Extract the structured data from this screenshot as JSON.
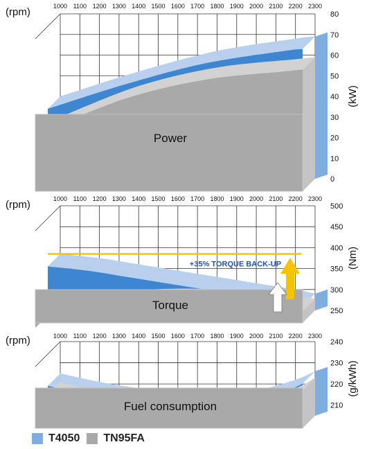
{
  "colors": {
    "t4050_dark": "#3f86d1",
    "t4050_light": "#b9cfee",
    "gray_face": "#a9a9a9",
    "gray_top": "#d2d2d2",
    "gray_side": "#c4c4c4",
    "blue_side": "#7eaee0",
    "annotation": "#f5c400",
    "annotation_text": "#1f56b5"
  },
  "legend": [
    {
      "label": "T4050",
      "color": "#7eaee0"
    },
    {
      "label": "TN95FA",
      "color": "#a9a9a9"
    }
  ],
  "chart_data": [
    {
      "type": "area",
      "title": "Power",
      "xlabel": "(rpm)",
      "ylabel": "(kW)",
      "x": [
        1000,
        1100,
        1200,
        1300,
        1400,
        1500,
        1600,
        1700,
        1800,
        1900,
        2000,
        2100,
        2200,
        2300
      ],
      "x_ticks": [
        "1000",
        "1100",
        "1200",
        "1300",
        "1400",
        "1500",
        "1600",
        "1700",
        "1800",
        "1900",
        "2000",
        "2100",
        "2200",
        "2300"
      ],
      "y_ticks": [
        "0",
        "10",
        "20",
        "30",
        "40",
        "50",
        "60",
        "70",
        "80"
      ],
      "ylim": [
        0,
        80
      ],
      "grid": true,
      "series": [
        {
          "name": "T4050",
          "x": [
            1000,
            1400,
            1800,
            2200,
            2300
          ],
          "values": [
            40,
            52,
            62,
            68,
            69
          ]
        },
        {
          "name": "TN95FA",
          "x": [
            1000,
            1400,
            1800,
            2200,
            2300
          ],
          "values": [
            30,
            45,
            54,
            58,
            59
          ]
        }
      ]
    },
    {
      "type": "area",
      "title": "Torque",
      "xlabel": "(rpm)",
      "ylabel": "(Nm)",
      "x": [
        1000,
        1100,
        1200,
        1300,
        1400,
        1500,
        1600,
        1700,
        1800,
        1900,
        2000,
        2100,
        2200,
        2300
      ],
      "x_ticks": [
        "1000",
        "1100",
        "1200",
        "1300",
        "1400",
        "1500",
        "1600",
        "1700",
        "1800",
        "1900",
        "2000",
        "2100",
        "2200",
        "2300"
      ],
      "y_ticks": [
        "250",
        "300",
        "350",
        "400",
        "450",
        "500"
      ],
      "ylim": [
        250,
        500
      ],
      "grid": true,
      "annotation": "+35% TORQUE BACK-UP",
      "series": [
        {
          "name": "T4050",
          "x": [
            1000,
            1200,
            1400,
            1600,
            1800,
            2000,
            2200,
            2300
          ],
          "values": [
            385,
            375,
            360,
            345,
            330,
            315,
            300,
            290
          ]
        },
        {
          "name": "TN95FA",
          "x": [
            1000,
            1200,
            1400,
            1600,
            1800,
            2000,
            2200,
            2300
          ],
          "values": [
            268,
            285,
            298,
            302,
            300,
            295,
            285,
            278
          ]
        }
      ]
    },
    {
      "type": "area",
      "title": "Fuel consumption",
      "xlabel": "(rpm)",
      "ylabel": "(g/kWh)",
      "x": [
        1000,
        1100,
        1200,
        1300,
        1400,
        1500,
        1600,
        1700,
        1800,
        1900,
        2000,
        2100,
        2200,
        2300
      ],
      "x_ticks": [
        "1000",
        "1100",
        "1200",
        "1300",
        "1400",
        "1500",
        "1600",
        "1700",
        "1800",
        "1900",
        "2000",
        "2100",
        "2200",
        "2300"
      ],
      "y_ticks": [
        "210",
        "220",
        "230",
        "240"
      ],
      "ylim": [
        205,
        240
      ],
      "grid": true,
      "series": [
        {
          "name": "T4050",
          "x": [
            1000,
            1200,
            1400,
            1600,
            1800,
            2000,
            2200,
            2300
          ],
          "values": [
            225,
            221,
            218,
            216,
            216,
            217,
            222,
            226
          ]
        },
        {
          "name": "TN95FA",
          "x": [
            1000,
            1200,
            1400,
            1600,
            1800,
            2000,
            2200,
            2300
          ],
          "values": [
            221,
            216,
            213,
            212,
            212,
            213,
            218,
            223
          ]
        }
      ]
    }
  ]
}
